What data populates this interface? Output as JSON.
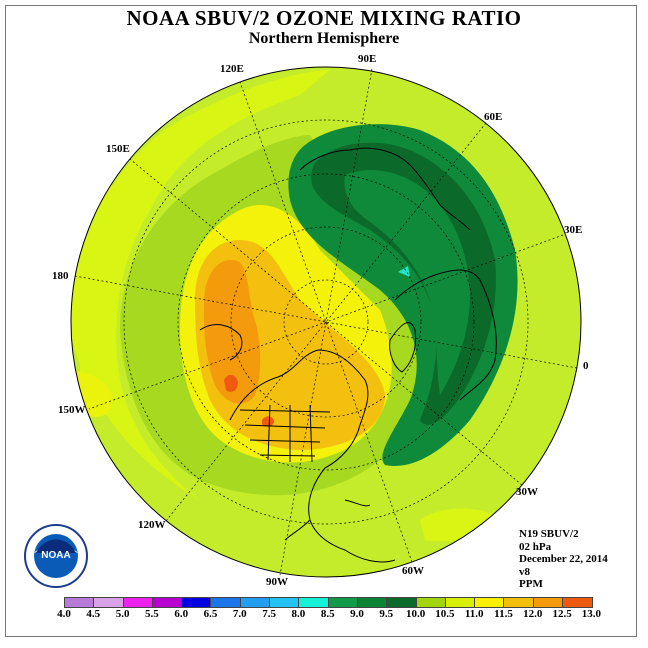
{
  "title": "NOAA SBUV/2 OZONE MIXING RATIO",
  "subtitle": "Northern Hemisphere",
  "meridian_labels": {
    "lon_90e": "90E",
    "lon_60e": "60E",
    "lon_30e": "30E",
    "lon_0": "0",
    "lon_30w": "30W",
    "lon_60w": "60W",
    "lon_90w": "90W",
    "lon_120w": "120W",
    "lon_150w": "150W",
    "lon_180": "180",
    "lon_150e": "150E",
    "lon_120e": "120E"
  },
  "info": {
    "satellite": "N19 SBUV/2",
    "level": "02 hPa",
    "date": "December 22, 2014",
    "version": "v8",
    "units": "PPM"
  },
  "logo_text": "NOAA",
  "colorbar": {
    "ticks": [
      "4.0",
      "4.5",
      "5.0",
      "5.5",
      "6.0",
      "6.5",
      "7.0",
      "7.5",
      "8.0",
      "8.5",
      "9.0",
      "9.5",
      "10.0",
      "10.5",
      "11.0",
      "11.5",
      "12.0",
      "12.5",
      "13.0"
    ],
    "colors": [
      "#b87ad8",
      "#d7a3e6",
      "#ee22ee",
      "#b800d0",
      "#0000e0",
      "#1c76ea",
      "#229ef0",
      "#22c2f2",
      "#16f0d6",
      "#119a4a",
      "#0a8434",
      "#0c6a2c",
      "#a3d40c",
      "#d8f008",
      "#fff000",
      "#f4bf0c",
      "#f49a0c",
      "#ee5a10",
      "#e60a0a",
      "#8a5a3a"
    ]
  },
  "map_colors": {
    "background_field": "#c4ec2a",
    "ring_lighter": "#d8f514",
    "band_95_100": "#a7d920",
    "band_100_105": "#f4f20a",
    "band_105_110": "#f3c00f",
    "band_110_115": "#f39a0d",
    "band_115_120": "#ef5a0f",
    "band_85_90": "#0f8a3a",
    "band_80_85": "#0b6a2a",
    "band_teal": "#22e3c6"
  }
}
